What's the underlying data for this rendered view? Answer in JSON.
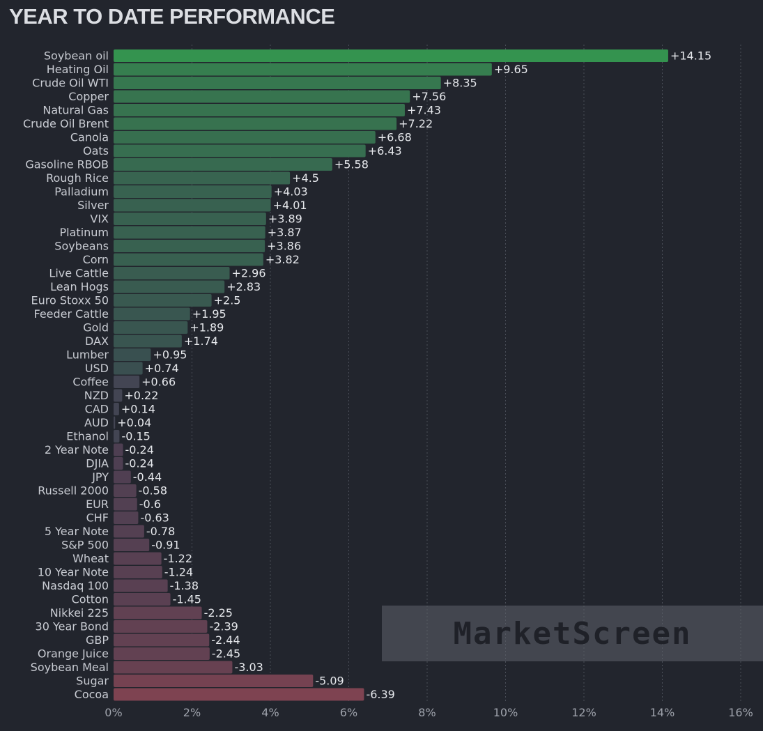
{
  "chart_data": {
    "type": "bar",
    "orientation": "horizontal",
    "title": "YEAR TO DATE PERFORMANCE",
    "xlabel": "",
    "ylabel": "",
    "xlim": [
      0,
      16
    ],
    "x_ticks": [
      "0%",
      "2%",
      "4%",
      "6%",
      "8%",
      "10%",
      "12%",
      "14%",
      "16%"
    ],
    "grid": "vertical dashed",
    "watermark": "MarketScreen",
    "categories": [
      "Soybean oil",
      "Heating Oil",
      "Crude Oil WTI",
      "Copper",
      "Natural Gas",
      "Crude Oil Brent",
      "Canola",
      "Oats",
      "Gasoline RBOB",
      "Rough Rice",
      "Palladium",
      "Silver",
      "VIX",
      "Platinum",
      "Soybeans",
      "Corn",
      "Live Cattle",
      "Lean Hogs",
      "Euro Stoxx 50",
      "Feeder Cattle",
      "Gold",
      "DAX",
      "Lumber",
      "USD",
      "Coffee",
      "NZD",
      "CAD",
      "AUD",
      "Ethanol",
      "2 Year Note",
      "DJIA",
      "JPY",
      "Russell 2000",
      "EUR",
      "CHF",
      "5 Year Note",
      "S&P 500",
      "Wheat",
      "10 Year Note",
      "Nasdaq 100",
      "Cotton",
      "Nikkei 225",
      "30 Year Bond",
      "GBP",
      "Orange Juice",
      "Soybean Meal",
      "Sugar",
      "Cocoa"
    ],
    "values": [
      14.15,
      9.65,
      8.35,
      7.56,
      7.43,
      7.22,
      6.68,
      6.43,
      5.58,
      4.5,
      4.03,
      4.01,
      3.89,
      3.87,
      3.86,
      3.82,
      2.96,
      2.83,
      2.5,
      1.95,
      1.89,
      1.74,
      0.95,
      0.74,
      0.66,
      0.22,
      0.14,
      0.04,
      -0.15,
      -0.24,
      -0.24,
      -0.44,
      -0.58,
      -0.6,
      -0.63,
      -0.78,
      -0.91,
      -1.22,
      -1.24,
      -1.38,
      -1.45,
      -2.25,
      -2.39,
      -2.44,
      -2.45,
      -3.03,
      -5.09,
      -6.39
    ],
    "value_labels": [
      "+14.15",
      "+9.65",
      "+8.35",
      "+7.56",
      "+7.43",
      "+7.22",
      "+6.68",
      "+6.43",
      "+5.58",
      "+4.5",
      "+4.03",
      "+4.01",
      "+3.89",
      "+3.87",
      "+3.86",
      "+3.82",
      "+2.96",
      "+2.83",
      "+2.5",
      "+1.95",
      "+1.89",
      "+1.74",
      "+0.95",
      "+0.74",
      "+0.66",
      "+0.22",
      "+0.14",
      "+0.04",
      "-0.15",
      "-0.24",
      "-0.24",
      "-0.44",
      "-0.58",
      "-0.6",
      "-0.63",
      "-0.78",
      "-0.91",
      "-1.22",
      "-1.24",
      "-1.38",
      "-1.45",
      "-2.25",
      "-2.39",
      "-2.44",
      "-2.45",
      "-3.03",
      "-5.09",
      "-6.39"
    ],
    "note": "Bars are drawn to the right of zero using absolute magnitude; sign shown in labels and color.",
    "colors": {
      "background": "#22252d",
      "positive_strong": "#34934f",
      "positive_weak": "#3a4a50",
      "neutral": "#434553",
      "negative_weak": "#4a3f52",
      "negative_strong": "#7e4351",
      "grid": "#4a4e58"
    }
  }
}
